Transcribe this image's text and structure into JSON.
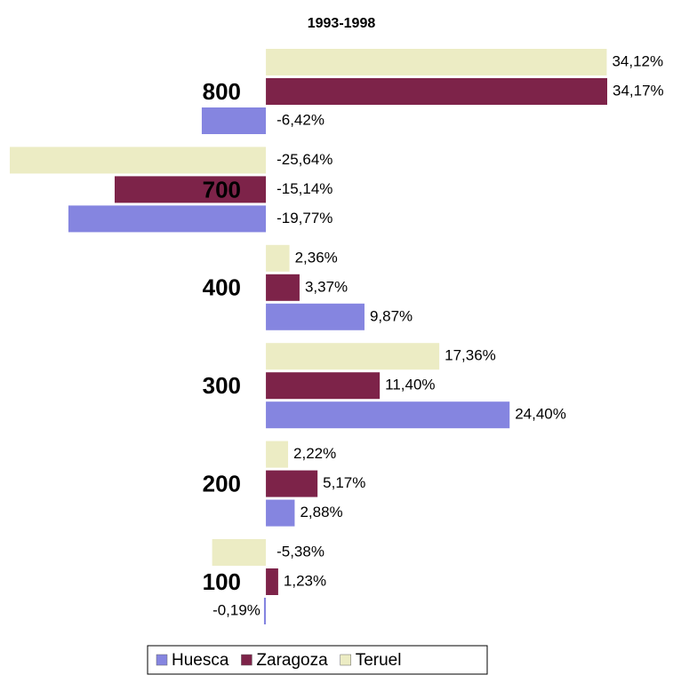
{
  "chart_data": {
    "type": "hbar",
    "title": "1993-1998",
    "categories": [
      "100",
      "200",
      "300",
      "400",
      "700",
      "800"
    ],
    "series": [
      {
        "name": "Huesca",
        "color": "#8585e0",
        "values": [
          -0.19,
          2.88,
          24.4,
          9.87,
          -19.77,
          -6.42
        ],
        "value_labels": [
          "-0,19%",
          "2,88%",
          "24,40%",
          "9,87%",
          "-19,77%",
          "-6,42%"
        ]
      },
      {
        "name": "Zaragoza",
        "color": "#7d2349",
        "values": [
          1.23,
          5.17,
          11.4,
          3.37,
          -15.14,
          34.17
        ],
        "value_labels": [
          "1,23%",
          "5,17%",
          "11,40%",
          "3,37%",
          "-15,14%",
          "34,17%"
        ]
      },
      {
        "name": "Teruel",
        "color": "#ececc4",
        "values": [
          -5.38,
          2.22,
          17.36,
          2.36,
          -25.64,
          34.12
        ],
        "value_labels": [
          "-5,38%",
          "2,22%",
          "17,36%",
          "2,36%",
          "-25,64%",
          "34,12%"
        ]
      }
    ],
    "legend": "bottom"
  }
}
